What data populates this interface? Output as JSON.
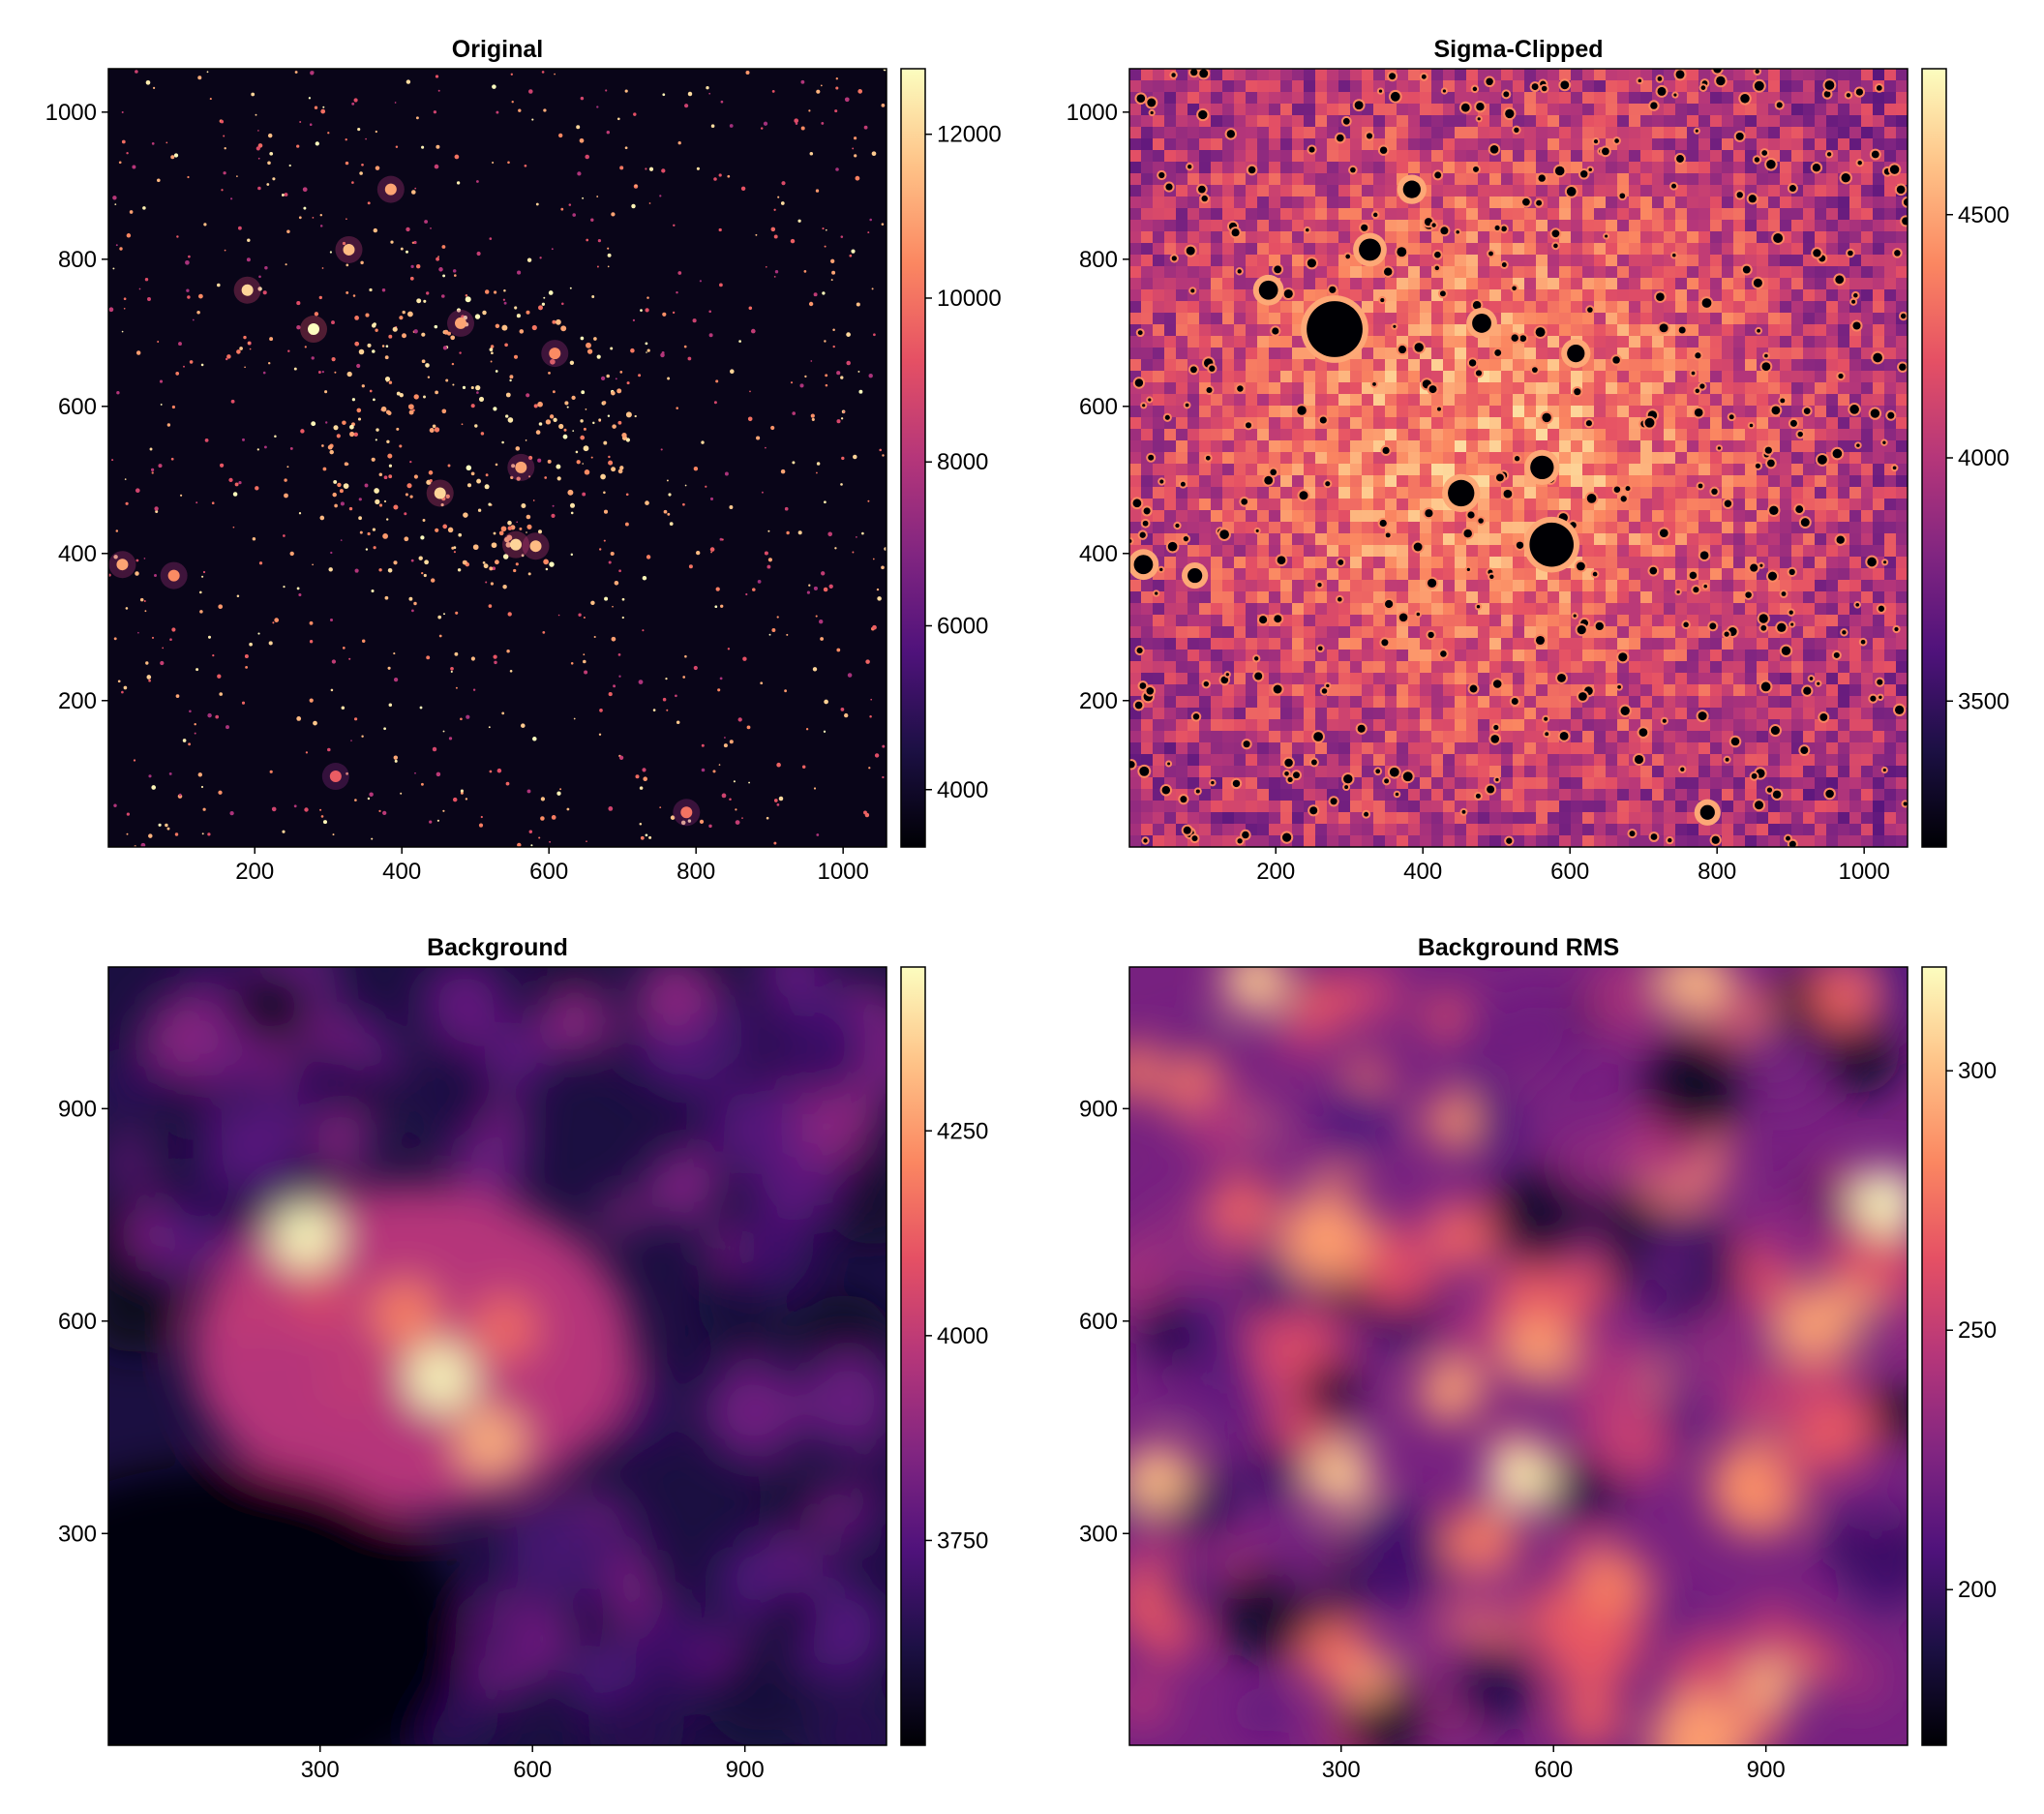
{
  "figure": {
    "layout": "2x2"
  },
  "colormap": {
    "name": "magma",
    "stops": [
      "#000004",
      "#1c1044",
      "#4f127b",
      "#812581",
      "#b5367a",
      "#e55064",
      "#fb8761",
      "#fec287",
      "#fcfdbf"
    ]
  },
  "chart_data": [
    {
      "type": "heatmap",
      "title": "Original",
      "xlim": [
        1,
        1059
      ],
      "ylim": [
        1,
        1059
      ],
      "x_ticks": [
        200,
        400,
        600,
        800,
        1000
      ],
      "y_ticks": [
        200,
        400,
        600,
        800,
        1000
      ],
      "colorbar": {
        "range": [
          3300,
          12800
        ],
        "ticks": [
          4000,
          6000,
          8000,
          10000,
          12000
        ]
      },
      "bright_sources": [
        {
          "x": 280,
          "y": 705,
          "value": 12800
        },
        {
          "x": 190,
          "y": 758,
          "value": 12000
        },
        {
          "x": 328,
          "y": 813,
          "value": 11500
        },
        {
          "x": 385,
          "y": 895,
          "value": 11000
        },
        {
          "x": 452,
          "y": 482,
          "value": 12000
        },
        {
          "x": 555,
          "y": 412,
          "value": 12000
        },
        {
          "x": 582,
          "y": 410,
          "value": 11500
        },
        {
          "x": 562,
          "y": 517,
          "value": 11000
        },
        {
          "x": 480,
          "y": 713,
          "value": 11000
        },
        {
          "x": 608,
          "y": 672,
          "value": 10500
        },
        {
          "x": 20,
          "y": 385,
          "value": 11000
        },
        {
          "x": 90,
          "y": 370,
          "value": 10500
        },
        {
          "x": 787,
          "y": 48,
          "value": 10000
        },
        {
          "x": 310,
          "y": 97,
          "value": 9500
        }
      ]
    },
    {
      "type": "heatmap",
      "title": "Sigma-Clipped",
      "xlim": [
        1,
        1059
      ],
      "ylim": [
        1,
        1059
      ],
      "x_ticks": [
        200,
        400,
        600,
        800,
        1000
      ],
      "y_ticks": [
        200,
        400,
        600,
        800,
        1000
      ],
      "colorbar": {
        "range": [
          3200,
          4800
        ],
        "ticks": [
          3500,
          4000,
          4500
        ]
      },
      "masked_sources": [
        {
          "x": 280,
          "y": 705,
          "r": 38
        },
        {
          "x": 190,
          "y": 758,
          "r": 13
        },
        {
          "x": 328,
          "y": 813,
          "r": 15
        },
        {
          "x": 385,
          "y": 895,
          "r": 12
        },
        {
          "x": 452,
          "y": 482,
          "r": 18
        },
        {
          "x": 575,
          "y": 412,
          "r": 30
        },
        {
          "x": 562,
          "y": 517,
          "r": 16
        },
        {
          "x": 480,
          "y": 713,
          "r": 13
        },
        {
          "x": 608,
          "y": 672,
          "r": 12
        },
        {
          "x": 20,
          "y": 385,
          "r": 13
        },
        {
          "x": 90,
          "y": 370,
          "r": 10
        },
        {
          "x": 787,
          "y": 48,
          "r": 10
        }
      ]
    },
    {
      "type": "heatmap",
      "title": "Background",
      "xlim": [
        1,
        1100
      ],
      "ylim": [
        1,
        1100
      ],
      "x_ticks": [
        300,
        600,
        900
      ],
      "y_ticks": [
        300,
        600,
        900
      ],
      "colorbar": {
        "range": [
          3500,
          4450
        ],
        "ticks": [
          3750,
          4000,
          4250
        ]
      },
      "peaks": [
        {
          "x": 280,
          "y": 720,
          "value": 4450
        },
        {
          "x": 470,
          "y": 520,
          "value": 4450
        },
        {
          "x": 540,
          "y": 430,
          "value": 4300
        },
        {
          "x": 420,
          "y": 610,
          "value": 4200
        },
        {
          "x": 560,
          "y": 590,
          "value": 4150
        },
        {
          "x": 300,
          "y": 630,
          "value": 4050
        },
        {
          "x": 200,
          "y": 620,
          "value": 4000
        },
        {
          "x": 350,
          "y": 520,
          "value": 4000
        }
      ]
    },
    {
      "type": "heatmap",
      "title": "Background RMS",
      "xlim": [
        1,
        1100
      ],
      "ylim": [
        1,
        1100
      ],
      "x_ticks": [
        300,
        600,
        900
      ],
      "y_ticks": [
        300,
        600,
        900
      ],
      "colorbar": {
        "range": [
          170,
          320
        ],
        "ticks": [
          200,
          250,
          300
        ]
      },
      "peaks": [
        {
          "x": 1070,
          "y": 770,
          "value": 320
        },
        {
          "x": 555,
          "y": 380,
          "value": 315
        },
        {
          "x": 300,
          "y": 380,
          "value": 305
        },
        {
          "x": 40,
          "y": 380,
          "value": 300
        },
        {
          "x": 180,
          "y": 1080,
          "value": 305
        },
        {
          "x": 800,
          "y": 1080,
          "value": 300
        },
        {
          "x": 580,
          "y": 560,
          "value": 290
        },
        {
          "x": 680,
          "y": 230,
          "value": 280
        },
        {
          "x": 290,
          "y": 130,
          "value": 275
        },
        {
          "x": 160,
          "y": 760,
          "value": 270
        },
        {
          "x": 470,
          "y": 720,
          "value": 270
        },
        {
          "x": 1010,
          "y": 1060,
          "value": 270
        }
      ]
    }
  ]
}
